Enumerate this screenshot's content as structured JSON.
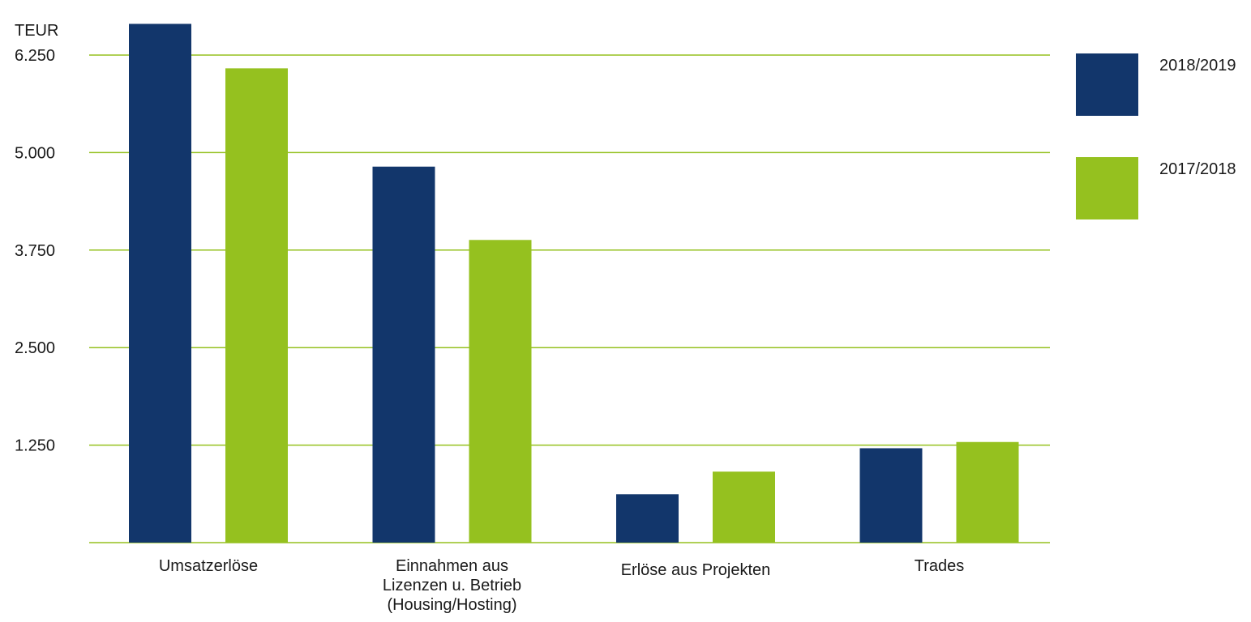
{
  "chart_data": {
    "type": "bar",
    "unit_label": "TEUR",
    "categories": [
      [
        "Umsatzerlöse"
      ],
      [
        "Einnahmen aus",
        "Lizenzen u. Betrieb",
        "(Housing/Hosting)"
      ],
      [
        "Erlöse aus Projekten"
      ],
      [
        "Trades"
      ]
    ],
    "series": [
      {
        "name": "2018/2019",
        "color": "#12366b",
        "values": [
          6650,
          4820,
          620,
          1210
        ]
      },
      {
        "name": "2017/2018",
        "color": "#95c11f",
        "values": [
          6080,
          3880,
          910,
          1290
        ]
      }
    ],
    "yticks": [
      {
        "value": 1250,
        "label": "1.250"
      },
      {
        "value": 2500,
        "label": "2.500"
      },
      {
        "value": 3750,
        "label": "3.750"
      },
      {
        "value": 5000,
        "label": "5.000"
      },
      {
        "value": 6250,
        "label": "6.250"
      }
    ],
    "ylim": [
      0,
      6250
    ],
    "grid": true,
    "grid_color": "#95c11f",
    "legend_position": "right"
  }
}
